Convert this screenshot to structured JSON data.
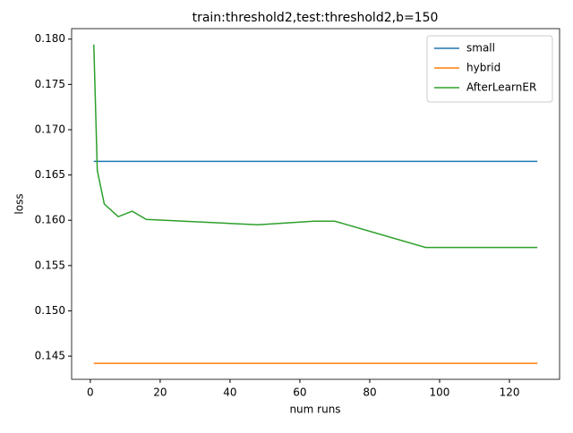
{
  "chart_data": {
    "type": "line",
    "title": "train:threshold2,test:threshold2,b=150",
    "x_label": "num runs",
    "y_label": "loss",
    "x": [
      1,
      2,
      4,
      8,
      12,
      16,
      48,
      64,
      70,
      96,
      128
    ],
    "series": [
      {
        "name": "small",
        "color": "#1f77b4",
        "values": [
          0.1665,
          0.1665,
          0.1665,
          0.1665,
          0.1665,
          0.1665,
          0.1665,
          0.1665,
          0.1665,
          0.1665,
          0.1665
        ]
      },
      {
        "name": "hybrid",
        "color": "#ff7f0e",
        "values": [
          0.1442,
          0.1442,
          0.1442,
          0.1442,
          0.1442,
          0.1442,
          0.1442,
          0.1442,
          0.1442,
          0.1442,
          0.1442
        ]
      },
      {
        "name": "AfterLearnER",
        "color": "#2ca02c",
        "values": [
          0.1794,
          0.1655,
          0.1618,
          0.1604,
          0.161,
          0.1601,
          0.1595,
          0.1599,
          0.1599,
          0.157,
          0.157
        ]
      }
    ],
    "xlim": [
      -5.35,
      134.35
    ],
    "xticks": [
      0,
      20,
      40,
      60,
      80,
      100,
      120
    ],
    "ylim": [
      0.14244,
      0.18116
    ],
    "yticks": [
      {
        "value": 0.145,
        "label": "0.145"
      },
      {
        "value": 0.15,
        "label": "0.150"
      },
      {
        "value": 0.155,
        "label": "0.155"
      },
      {
        "value": 0.16,
        "label": "0.160"
      },
      {
        "value": 0.165,
        "label": "0.165"
      },
      {
        "value": 0.17,
        "label": "0.170"
      },
      {
        "value": 0.175,
        "label": "0.175"
      },
      {
        "value": 0.18,
        "label": "0.180"
      }
    ],
    "legend": "upper right"
  }
}
